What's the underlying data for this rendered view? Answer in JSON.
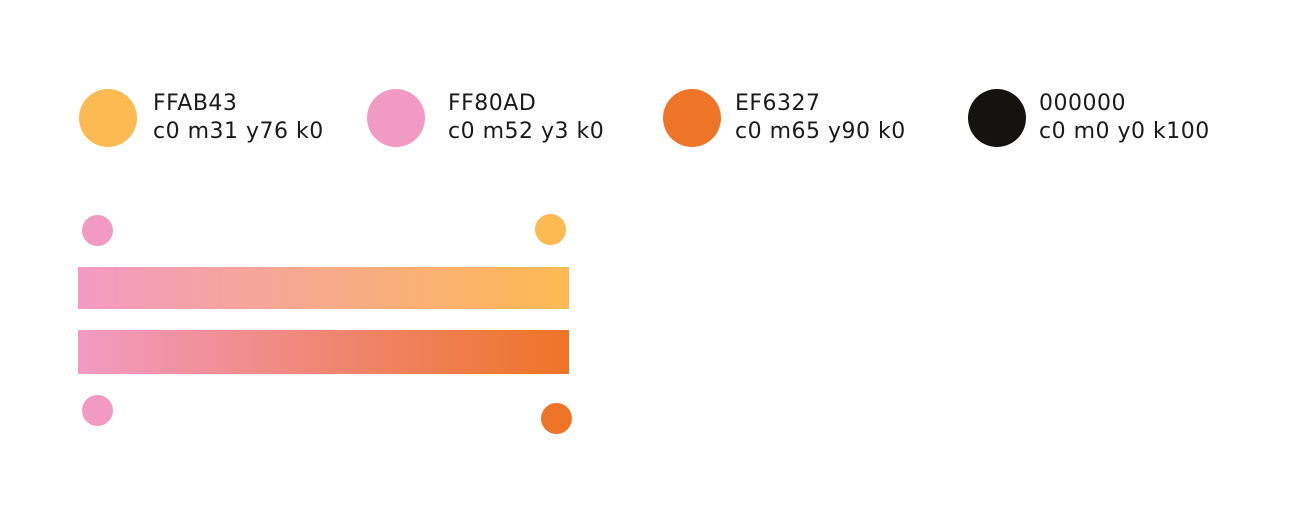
{
  "swatches": [
    {
      "hex_label": "FFAB43",
      "cmyk_label": "c0 m31 y76 k0",
      "color": "#FDBA52"
    },
    {
      "hex_label": "FF80AD",
      "cmyk_label": "c0 m52 y3 k0",
      "color": "#F29AC3"
    },
    {
      "hex_label": "EF6327",
      "cmyk_label": "c0 m65 y90 k0",
      "color": "#EE7428"
    },
    {
      "hex_label": "000000",
      "cmyk_label": "c0 m0 y0 k100",
      "color": "#14130F"
    }
  ],
  "gradients": [
    {
      "from": "#F29AC3",
      "to": "#FDBA52"
    },
    {
      "from": "#F29AC3",
      "to": "#EE7428"
    }
  ]
}
